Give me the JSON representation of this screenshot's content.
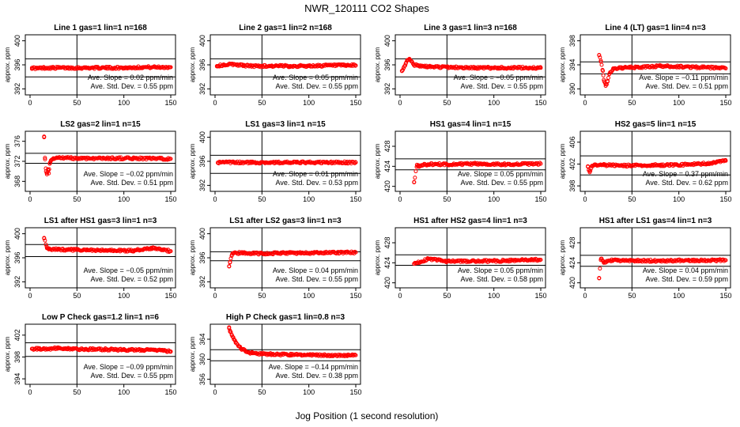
{
  "title": "NWR_120111  CO2 Shapes",
  "xlabel": "Jog Position (1 second resolution)",
  "colors": {
    "points": "#ff0000",
    "lines": "#000000",
    "background": "#ffffff"
  },
  "chart_data": [
    {
      "type": "scatter",
      "title": "Line 1 gas=1 lin=1 n=168",
      "ylabel": "approx. ppm",
      "xlim": [
        0,
        150
      ],
      "xticks": [
        0,
        50,
        100,
        150
      ],
      "ylim": [
        391,
        401
      ],
      "yticks": [
        392,
        396,
        400
      ],
      "hlines": [
        397,
        394
      ],
      "vline": 50,
      "slope_text": "Ave. Slope =  0.02  ppm/min",
      "std_text": "Ave. Std. Dev. =  0.55  ppm",
      "series": [
        {
          "x": [
            2,
            8,
            15,
            25,
            40,
            60,
            80,
            100,
            120,
            140,
            150
          ],
          "y": [
            395.5,
            395.4,
            395.5,
            395.5,
            395.5,
            395.5,
            395.5,
            395.5,
            395.6,
            395.6,
            395.6
          ]
        }
      ]
    },
    {
      "type": "scatter",
      "title": "Line 2 gas=1 lin=2 n=168",
      "ylabel": "approx. ppm",
      "xlim": [
        0,
        150
      ],
      "xticks": [
        0,
        50,
        100,
        150
      ],
      "ylim": [
        391,
        401
      ],
      "yticks": [
        392,
        396,
        400
      ],
      "hlines": [
        397,
        394
      ],
      "vline": 50,
      "slope_text": "Ave. Slope =  0.05  ppm/min",
      "std_text": "Ave. Std. Dev. =  0.55  ppm",
      "series": [
        {
          "x": [
            2,
            10,
            20,
            30,
            40,
            60,
            80,
            100,
            120,
            140,
            150
          ],
          "y": [
            395.8,
            396.0,
            396.1,
            395.9,
            395.8,
            395.8,
            395.8,
            395.8,
            395.9,
            395.9,
            395.9
          ]
        }
      ]
    },
    {
      "type": "scatter",
      "title": "Line 3 gas=1 lin=3 n=168",
      "ylabel": "approx. ppm",
      "xlim": [
        0,
        150
      ],
      "xticks": [
        0,
        50,
        100,
        150
      ],
      "ylim": [
        391,
        401
      ],
      "yticks": [
        392,
        396,
        400
      ],
      "hlines": [
        397,
        394
      ],
      "vline": 50,
      "slope_text": "Ave. Slope = −0.05  ppm/min",
      "std_text": "Ave. Std. Dev. =  0.55  ppm",
      "series": [
        {
          "x": [
            2,
            4,
            6,
            8,
            10,
            12,
            15,
            20,
            30,
            50,
            80,
            110,
            150
          ],
          "y": [
            395.0,
            395.5,
            396.2,
            396.8,
            397.0,
            396.6,
            396.0,
            395.8,
            395.7,
            395.6,
            395.5,
            395.5,
            395.5
          ]
        }
      ]
    },
    {
      "type": "scatter",
      "title": "Line 4 (LT) gas=1 lin=4 n=3",
      "ylabel": "approx. ppm",
      "xlim": [
        0,
        150
      ],
      "xticks": [
        0,
        50,
        100,
        150
      ],
      "ylim": [
        389,
        399
      ],
      "yticks": [
        390,
        394,
        398
      ],
      "hlines": [
        394.5,
        392.5
      ],
      "vline": 50,
      "slope_text": "Ave. Slope = −0.11  ppm/min",
      "std_text": "Ave. Std. Dev. =  0.51  ppm",
      "series": [
        {
          "x": [
            15,
            17,
            19,
            20,
            22,
            24,
            26,
            30,
            40,
            60,
            80,
            100,
            120,
            140,
            150
          ],
          "y": [
            395.6,
            394.5,
            393.0,
            391.5,
            390.5,
            391.2,
            392.5,
            393.4,
            393.5,
            393.6,
            393.8,
            393.7,
            393.6,
            393.5,
            393.4
          ]
        }
      ]
    },
    {
      "type": "scatter",
      "title": "LS2 gas=2 lin=1 n=15",
      "ylabel": "approx. ppm",
      "xlim": [
        0,
        150
      ],
      "xticks": [
        0,
        50,
        100,
        150
      ],
      "ylim": [
        366,
        378
      ],
      "yticks": [
        368,
        372,
        376
      ],
      "hlines": [
        373.6,
        371.6
      ],
      "vline": 50,
      "slope_text": "Ave. Slope = −0.02  ppm/min",
      "std_text": "Ave. Std. Dev. =  0.51  ppm",
      "series": [
        {
          "x": [
            15,
            16,
            17,
            18,
            19,
            20,
            21,
            22,
            25,
            30,
            50,
            80,
            110,
            150
          ],
          "y": [
            376.8,
            372.4,
            370.0,
            369.4,
            370.4,
            369.6,
            371.5,
            372.0,
            372.5,
            372.7,
            372.6,
            372.6,
            372.6,
            372.5
          ]
        }
      ]
    },
    {
      "type": "scatter",
      "title": "LS1 gas=3 lin=1 n=15",
      "ylabel": "approx. ppm",
      "xlim": [
        0,
        150
      ],
      "xticks": [
        0,
        50,
        100,
        150
      ],
      "ylim": [
        391,
        401
      ],
      "yticks": [
        392,
        396,
        400
      ],
      "hlines": [
        397,
        394
      ],
      "vline": 50,
      "slope_text": "Ave. Slope =  0.01  ppm/min",
      "std_text": "Ave. Std. Dev. =  0.53  ppm",
      "series": [
        {
          "x": [
            3,
            10,
            20,
            40,
            60,
            80,
            100,
            120,
            140,
            150
          ],
          "y": [
            395.8,
            395.8,
            395.8,
            395.8,
            395.8,
            395.8,
            395.8,
            395.8,
            395.8,
            395.8
          ]
        }
      ]
    },
    {
      "type": "scatter",
      "title": "HS1 gas=4 lin=1 n=15",
      "ylabel": "approx. ppm",
      "xlim": [
        0,
        150
      ],
      "xticks": [
        0,
        50,
        100,
        150
      ],
      "ylim": [
        419,
        431
      ],
      "yticks": [
        420,
        424,
        428
      ],
      "hlines": [
        425.5,
        423.3
      ],
      "vline": 50,
      "slope_text": "Ave. Slope =  0.05  ppm/min",
      "std_text": "Ave. Std. Dev. =  0.55  ppm",
      "series": [
        {
          "x": [
            15,
            18,
            20,
            25,
            30,
            50,
            80,
            110,
            150
          ],
          "y": [
            420.8,
            424.3,
            424.0,
            424.3,
            424.4,
            424.4,
            424.5,
            424.4,
            424.5
          ]
        }
      ]
    },
    {
      "type": "scatter",
      "title": "HS2 gas=5 lin=1 n=15",
      "ylabel": "approx. ppm",
      "xlim": [
        0,
        150
      ],
      "xticks": [
        0,
        50,
        100,
        150
      ],
      "ylim": [
        397,
        408
      ],
      "yticks": [
        398,
        402,
        406
      ],
      "hlines": [
        403.5,
        400.0
      ],
      "vline": 50,
      "slope_text": "Ave. Slope =  0.37  ppm/min",
      "std_text": "Ave. Std. Dev. =  0.62  ppm",
      "series": [
        {
          "x": [
            3,
            5,
            7,
            10,
            20,
            50,
            80,
            110,
            130,
            140,
            150
          ],
          "y": [
            401.5,
            400.5,
            401.6,
            401.8,
            401.8,
            401.7,
            401.8,
            401.9,
            402.1,
            402.3,
            402.6
          ]
        }
      ]
    },
    {
      "type": "scatter",
      "title": "LS1 after HS1 gas=3 lin=1 n=3",
      "ylabel": "approx. ppm",
      "xlim": [
        0,
        150
      ],
      "xticks": [
        0,
        50,
        100,
        150
      ],
      "ylim": [
        391,
        401
      ],
      "yticks": [
        392,
        396,
        400
      ],
      "hlines": [
        398.2,
        396.2
      ],
      "vline": 50,
      "slope_text": "Ave. Slope = −0.05  ppm/min",
      "std_text": "Ave. Std. Dev. =  0.52  ppm",
      "series": [
        {
          "x": [
            15,
            18,
            20,
            30,
            50,
            80,
            110,
            130,
            150
          ],
          "y": [
            399.3,
            397.6,
            397.4,
            397.4,
            397.3,
            397.2,
            397.2,
            397.6,
            397.1
          ]
        }
      ]
    },
    {
      "type": "scatter",
      "title": "LS1 after LS2 gas=3 lin=1 n=3",
      "ylabel": "approx. ppm",
      "xlim": [
        0,
        150
      ],
      "xticks": [
        0,
        50,
        100,
        150
      ],
      "ylim": [
        391,
        401
      ],
      "yticks": [
        392,
        396,
        400
      ],
      "hlines": [
        397,
        395.5
      ],
      "vline": 50,
      "slope_text": "Ave. Slope =  0.04  ppm/min",
      "std_text": "Ave. Std. Dev. =  0.55  ppm",
      "series": [
        {
          "x": [
            15,
            16,
            18,
            20,
            30,
            50,
            80,
            110,
            150
          ],
          "y": [
            394.6,
            395.3,
            396.5,
            396.8,
            396.8,
            396.7,
            396.8,
            396.8,
            396.9
          ]
        }
      ]
    },
    {
      "type": "scatter",
      "title": "HS1 after HS2 gas=4 lin=1 n=3",
      "ylabel": "approx. ppm",
      "xlim": [
        0,
        150
      ],
      "xticks": [
        0,
        50,
        100,
        150
      ],
      "ylim": [
        419,
        431
      ],
      "yticks": [
        420,
        424,
        428
      ],
      "hlines": [
        425.6,
        423.5
      ],
      "vline": 50,
      "slope_text": "Ave. Slope =  0.05  ppm/min",
      "std_text": "Ave. Std. Dev. =  0.58  ppm",
      "series": [
        {
          "x": [
            15,
            18,
            22,
            30,
            50,
            80,
            110,
            140,
            150
          ],
          "y": [
            423.8,
            424.0,
            424.2,
            424.8,
            424.3,
            424.3,
            424.4,
            424.6,
            424.6
          ]
        }
      ]
    },
    {
      "type": "scatter",
      "title": "HS1 after LS1 gas=4 lin=1 n=3",
      "ylabel": "approx. ppm",
      "xlim": [
        0,
        150
      ],
      "xticks": [
        0,
        50,
        100,
        150
      ],
      "ylim": [
        419,
        431
      ],
      "yticks": [
        420,
        424,
        428
      ],
      "hlines": [
        425.5,
        423.3
      ],
      "vline": 50,
      "slope_text": "Ave. Slope =  0.04  ppm/min",
      "std_text": "Ave. Std. Dev. =  0.59  ppm",
      "series": [
        {
          "x": [
            15,
            17,
            20,
            25,
            30,
            50,
            80,
            110,
            150
          ],
          "y": [
            420.9,
            424.8,
            424.0,
            424.4,
            424.5,
            424.4,
            424.4,
            424.5,
            424.5
          ]
        }
      ]
    },
    {
      "type": "scatter",
      "title": "Low P Check gas=1.2 lin=1 n=6",
      "ylabel": "approx. ppm",
      "xlim": [
        0,
        150
      ],
      "xticks": [
        0,
        50,
        100,
        150
      ],
      "ylim": [
        393,
        404
      ],
      "yticks": [
        394,
        398,
        402
      ],
      "hlines": [
        400.6,
        398.1
      ],
      "vline": 50,
      "slope_text": "Ave. Slope = −0.09  ppm/min",
      "std_text": "Ave. Std. Dev. =  0.55  ppm",
      "series": [
        {
          "x": [
            2,
            10,
            20,
            30,
            40,
            60,
            80,
            100,
            120,
            140,
            150
          ],
          "y": [
            399.5,
            399.5,
            399.5,
            399.6,
            399.5,
            399.4,
            399.4,
            399.3,
            399.3,
            399.2,
            399.0
          ]
        }
      ]
    },
    {
      "type": "scatter",
      "title": "High P Check gas=1 lin=0.8 n=3",
      "ylabel": "approx. ppm",
      "xlim": [
        0,
        150
      ],
      "xticks": [
        0,
        50,
        100,
        150
      ],
      "ylim": [
        355,
        367
      ],
      "yticks": [
        356,
        360,
        364
      ],
      "hlines": [
        361.9,
        359.7
      ],
      "vline": 50,
      "slope_text": "Ave. Slope = −0.14  ppm/min",
      "std_text": "Ave. Std. Dev. =  0.38  ppm",
      "series": [
        {
          "x": [
            15,
            16,
            18,
            20,
            22,
            25,
            28,
            32,
            36,
            40,
            50,
            60,
            80,
            100,
            120,
            140,
            150
          ],
          "y": [
            366.2,
            365.5,
            364.8,
            364.0,
            363.3,
            362.6,
            362.1,
            361.7,
            361.4,
            361.2,
            361.1,
            361.0,
            360.9,
            360.9,
            360.8,
            360.8,
            360.8
          ]
        }
      ]
    }
  ]
}
